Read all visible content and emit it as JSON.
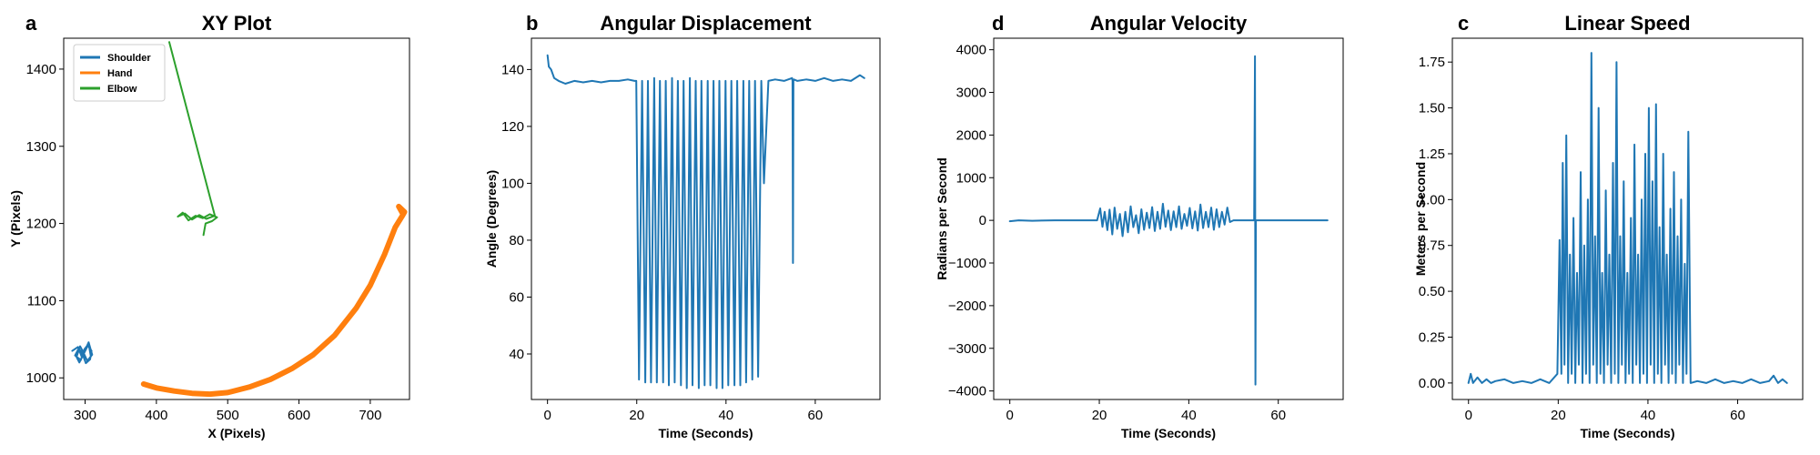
{
  "chart_data": [
    {
      "type": "line",
      "panel_letter": "a",
      "title": "XY Plot",
      "xlabel": "X (Pixels)",
      "ylabel": "Y (Pixels)",
      "xlim": [
        270,
        755
      ],
      "ylim": [
        972,
        1440
      ],
      "xticks": [
        300,
        400,
        500,
        600,
        700
      ],
      "yticks": [
        1000,
        1100,
        1200,
        1300,
        1400
      ],
      "legend": "top-left",
      "series": [
        {
          "name": "Shoulder",
          "color": "#1f77b4",
          "x": [
            282,
            290,
            295,
            300,
            305,
            310,
            303,
            297,
            293,
            288,
            292,
            298,
            304,
            309,
            307,
            301,
            296,
            291,
            286,
            294,
            299,
            305,
            308
          ],
          "y": [
            1035,
            1040,
            1028,
            1036,
            1046,
            1030,
            1022,
            1034,
            1041,
            1027,
            1020,
            1031,
            1042,
            1035,
            1024,
            1019,
            1032,
            1038,
            1029,
            1023,
            1037,
            1044,
            1028
          ]
        },
        {
          "name": "Hand",
          "color": "#ff7f0e",
          "x": [
            382,
            400,
            425,
            450,
            475,
            500,
            530,
            560,
            590,
            620,
            650,
            680,
            700,
            720,
            735,
            745,
            748,
            740,
            746
          ],
          "y": [
            992,
            987,
            983,
            980,
            979,
            981,
            988,
            998,
            1012,
            1030,
            1055,
            1090,
            1120,
            1160,
            1195,
            1210,
            1215,
            1222,
            1212
          ]
        },
        {
          "name": "Elbow",
          "color": "#2ca02c",
          "x": [
            418,
            482,
            470,
            460,
            450,
            440,
            430,
            437,
            445,
            455,
            465,
            475,
            485,
            478,
            469,
            466
          ],
          "y": [
            1435,
            1210,
            1206,
            1211,
            1205,
            1213,
            1209,
            1214,
            1204,
            1210,
            1207,
            1212,
            1208,
            1203,
            1200,
            1185
          ]
        }
      ]
    },
    {
      "type": "line",
      "panel_letter": "b",
      "title": "Angular Displacement",
      "xlabel": "Time (Seconds)",
      "ylabel": "Angle (Degrees)",
      "xlim": [
        -3.6,
        74.5
      ],
      "ylim": [
        24,
        151
      ],
      "xticks": [
        0,
        20,
        40,
        60
      ],
      "yticks": [
        40,
        60,
        80,
        100,
        120,
        140
      ],
      "series": [
        {
          "name": "",
          "color": "#1f77b4",
          "x": [
            0,
            0.3,
            0.8,
            1.5,
            2.5,
            4,
            6,
            8,
            10,
            12,
            14,
            16,
            18,
            19.5,
            19.9,
            20.5,
            21.2,
            21.9,
            22.5,
            23.2,
            23.9,
            24.5,
            25.2,
            25.9,
            26.5,
            27.2,
            27.9,
            28.5,
            29.2,
            29.9,
            30.5,
            31.2,
            31.9,
            32.5,
            33.2,
            33.9,
            34.5,
            35.2,
            35.9,
            36.5,
            37.2,
            37.9,
            38.5,
            39.2,
            39.9,
            40.5,
            41.2,
            41.9,
            42.5,
            43.2,
            43.9,
            44.5,
            45.2,
            45.9,
            46.5,
            47.2,
            47.9,
            48.5,
            49.5,
            51,
            53,
            54.8,
            54.9,
            55.0,
            55.1,
            55.2,
            56,
            58,
            60,
            62,
            64,
            66,
            68,
            70,
            71
          ],
          "y": [
            145,
            141,
            140,
            137,
            136,
            135,
            136,
            135.5,
            136,
            135.5,
            136,
            136,
            136.5,
            136,
            136,
            31,
            136,
            30,
            136,
            30,
            137,
            30,
            136,
            30,
            136,
            29,
            137,
            30,
            136,
            29,
            136,
            28,
            137,
            29,
            136,
            28,
            136,
            29,
            136,
            29,
            136,
            28,
            136,
            28,
            136,
            29,
            136,
            29,
            136,
            29,
            136,
            30,
            136,
            31,
            136,
            32,
            136,
            100,
            136,
            136.5,
            136,
            137,
            136,
            72,
            136,
            136.5,
            136,
            136.5,
            136,
            137,
            136,
            136.5,
            136,
            138,
            137
          ]
        }
      ]
    },
    {
      "type": "line",
      "panel_letter": "d",
      "title": "Angular Velocity",
      "xlabel": "Time (Seconds)",
      "ylabel": "Radians per Second",
      "xlim": [
        -3.6,
        74.5
      ],
      "ylim": [
        -4200,
        4270
      ],
      "xticks": [
        0,
        20,
        40,
        60
      ],
      "yticks": [
        -4000,
        -3000,
        -2000,
        -1000,
        0,
        1000,
        2000,
        3000,
        4000
      ],
      "series": [
        {
          "name": "",
          "color": "#1f77b4",
          "x": [
            0,
            2,
            5,
            10,
            15,
            19.5,
            20.2,
            20.7,
            21.2,
            21.8,
            22.3,
            22.9,
            23.4,
            24.0,
            24.6,
            25.2,
            25.8,
            26.4,
            27.0,
            27.6,
            28.2,
            28.8,
            29.4,
            30.0,
            30.6,
            31.2,
            31.8,
            32.4,
            33.0,
            33.6,
            34.2,
            34.8,
            35.4,
            36.0,
            36.6,
            37.2,
            37.8,
            38.4,
            39.0,
            39.6,
            40.2,
            40.8,
            41.4,
            42.0,
            42.6,
            43.2,
            43.8,
            44.4,
            45.0,
            45.6,
            46.2,
            46.8,
            47.4,
            48.0,
            48.6,
            49.2,
            50,
            52,
            54.6,
            54.8,
            54.9,
            55.0,
            55.1,
            55.3,
            57,
            60,
            63,
            66,
            69,
            71
          ],
          "y": [
            -20,
            0,
            -10,
            0,
            0,
            0,
            280,
            -150,
            200,
            -230,
            250,
            -330,
            300,
            -200,
            150,
            -370,
            200,
            -280,
            330,
            -160,
            120,
            -300,
            260,
            -220,
            180,
            -180,
            310,
            -250,
            200,
            -200,
            390,
            -150,
            230,
            -230,
            210,
            -160,
            330,
            -200,
            150,
            -130,
            290,
            -190,
            210,
            -240,
            370,
            -180,
            200,
            -160,
            300,
            -220,
            260,
            -160,
            200,
            -100,
            300,
            -40,
            0,
            0,
            0,
            3850,
            -3850,
            0,
            0,
            0,
            0,
            0,
            0,
            0,
            0,
            0
          ]
        }
      ]
    },
    {
      "type": "line",
      "panel_letter": "c",
      "title": "Linear Speed",
      "xlabel": "Time (Seconds)",
      "ylabel": "Meters per Second",
      "xlim": [
        -3.6,
        74.5
      ],
      "ylim": [
        -0.09,
        1.88
      ],
      "xticks": [
        0,
        20,
        40,
        60
      ],
      "yticks": [
        0.0,
        0.25,
        0.5,
        0.75,
        1.0,
        1.25,
        1.5,
        1.75
      ],
      "series": [
        {
          "name": "",
          "color": "#1f77b4",
          "x": [
            0,
            0.5,
            1,
            2,
            3,
            4,
            5,
            6,
            8,
            10,
            12,
            14,
            16,
            18,
            19.8,
            20.3,
            20.7,
            21.0,
            21.4,
            21.8,
            22.2,
            22.6,
            23.0,
            23.4,
            23.8,
            24.2,
            24.6,
            25.0,
            25.4,
            25.8,
            26.2,
            26.6,
            27.0,
            27.4,
            27.8,
            28.2,
            28.6,
            29.0,
            29.4,
            29.8,
            30.2,
            30.6,
            31.0,
            31.4,
            31.8,
            32.2,
            32.6,
            33.0,
            33.4,
            33.8,
            34.2,
            34.6,
            35.0,
            35.4,
            35.8,
            36.2,
            36.6,
            37.0,
            37.4,
            37.8,
            38.2,
            38.6,
            39.0,
            39.4,
            39.8,
            40.2,
            40.6,
            41.0,
            41.4,
            41.8,
            42.2,
            42.6,
            43.0,
            43.4,
            43.8,
            44.2,
            44.6,
            45.0,
            45.4,
            45.8,
            46.2,
            46.6,
            47.0,
            47.4,
            47.8,
            48.2,
            48.6,
            49.0,
            49.5,
            51,
            53,
            55,
            57,
            59,
            61,
            63,
            65,
            67,
            68,
            69,
            70,
            71
          ],
          "y": [
            0.0,
            0.05,
            0.0,
            0.03,
            0.0,
            0.02,
            0.0,
            0.01,
            0.02,
            0.0,
            0.01,
            0.0,
            0.02,
            0.0,
            0.05,
            0.78,
            0.05,
            1.2,
            0.1,
            1.35,
            0.0,
            0.7,
            0.05,
            0.9,
            0.0,
            0.6,
            0.1,
            1.15,
            0.0,
            0.75,
            0.05,
            1.0,
            0.0,
            1.8,
            0.1,
            0.8,
            0.0,
            1.5,
            0.05,
            0.6,
            0.0,
            1.05,
            0.1,
            0.7,
            0.0,
            1.2,
            0.05,
            1.75,
            0.0,
            0.8,
            0.1,
            1.1,
            0.0,
            0.6,
            0.05,
            0.9,
            0.0,
            1.3,
            0.1,
            0.7,
            0.0,
            1.0,
            0.05,
            1.25,
            0.0,
            1.5,
            0.1,
            1.1,
            0.0,
            1.52,
            0.05,
            0.85,
            0.0,
            1.25,
            0.1,
            0.7,
            0.0,
            0.95,
            0.05,
            1.15,
            0.0,
            0.8,
            0.1,
            1.0,
            0.0,
            0.65,
            0.05,
            1.37,
            0.0,
            0.01,
            0.0,
            0.02,
            0.0,
            0.01,
            0.0,
            0.02,
            0.0,
            0.01,
            0.04,
            0.0,
            0.02,
            0.0
          ]
        }
      ]
    }
  ]
}
